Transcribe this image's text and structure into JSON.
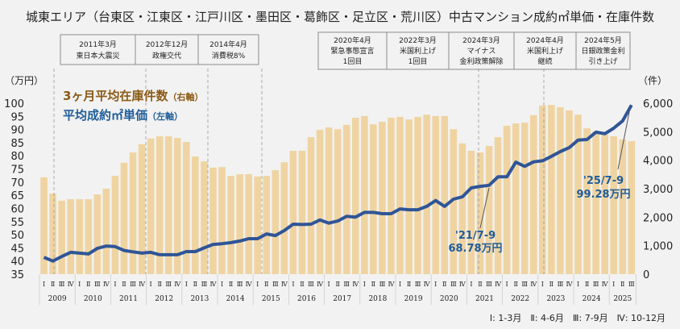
{
  "chart_data": {
    "type": "bar+line",
    "title": "城東エリア（台東区・江東区・江戸川区・墨田区・葛飾区・足立区・荒川区）中古マンション成約㎡単価・在庫件数",
    "left_axis": {
      "unit": "（万円）",
      "min": 35,
      "max": 100,
      "step": 5,
      "ticks": [
        "35",
        "40",
        "45",
        "50",
        "55",
        "60",
        "65",
        "70",
        "75",
        "80",
        "85",
        "90",
        "95",
        "100"
      ]
    },
    "right_axis": {
      "unit": "（件）",
      "min": 0,
      "max": 6000,
      "step": 1000,
      "ticks": [
        "0",
        "1,000",
        "2,000",
        "3,000",
        "4,000",
        "5,000",
        "6,000"
      ]
    },
    "years": [
      "2009",
      "2010",
      "2011",
      "2012",
      "2013",
      "2014",
      "2015",
      "2016",
      "2017",
      "2018",
      "2019",
      "2020",
      "2021",
      "2022",
      "2023",
      "2024",
      "2025"
    ],
    "quarter_labels": [
      "Ⅰ",
      "Ⅱ",
      "Ⅲ",
      "Ⅳ"
    ],
    "last_year_quarters": 3,
    "series": [
      {
        "name": "3ヶ月平均在庫件数",
        "axis_note": "（右軸）",
        "axis": "right",
        "kind": "bar",
        "color": "#efd4a2",
        "values": [
          3400,
          2830,
          2580,
          2630,
          2630,
          2630,
          2800,
          3000,
          3450,
          3910,
          4270,
          4560,
          4760,
          4840,
          4840,
          4780,
          4640,
          4130,
          3960,
          3740,
          3760,
          3450,
          3510,
          3510,
          3430,
          3450,
          3650,
          3930,
          4330,
          4330,
          4810,
          5070,
          5150,
          5090,
          5240,
          5490,
          5550,
          5260,
          5350,
          5490,
          5520,
          5430,
          5520,
          5600,
          5550,
          5550,
          5090,
          4590,
          4330,
          4270,
          4500,
          4810,
          5210,
          5290,
          5320,
          5580,
          5920,
          5940,
          5860,
          5750,
          5600,
          5120,
          5010,
          4900,
          4840,
          4730,
          4670
        ]
      },
      {
        "name": "平均成約㎡単価",
        "axis_note": "（左軸）",
        "axis": "left",
        "kind": "line",
        "color": "#2f5597",
        "values": [
          41.4,
          40.0,
          41.7,
          43.3,
          43.0,
          42.7,
          44.8,
          45.7,
          45.5,
          44.0,
          43.5,
          43.0,
          43.3,
          42.4,
          42.4,
          42.4,
          43.6,
          43.6,
          45.0,
          46.3,
          46.6,
          47.0,
          47.6,
          48.5,
          48.5,
          50.3,
          49.7,
          51.6,
          54.0,
          53.9,
          54.0,
          55.6,
          54.4,
          55.2,
          57.0,
          56.7,
          58.5,
          58.5,
          58.0,
          58.0,
          59.8,
          59.5,
          59.5,
          60.8,
          63.0,
          60.8,
          63.5,
          64.4,
          67.8,
          68.4,
          68.78,
          72.0,
          72.0,
          77.6,
          76.0,
          77.7,
          78.1,
          79.8,
          81.6,
          83.1,
          86.0,
          86.2,
          89.0,
          88.4,
          90.5,
          93.3,
          99.28
        ]
      }
    ],
    "annotations": [
      {
        "period": "'21/7-9",
        "value": "68.78万円"
      },
      {
        "period": "'25/7-9",
        "value": "99.28万円"
      }
    ],
    "events_left": [
      {
        "line1": "2011年3月",
        "line2": "東日本大震災"
      },
      {
        "line1": "2012年12月",
        "line2": "政権交代"
      },
      {
        "line1": "2014年4月",
        "line2": "消費税8%"
      }
    ],
    "events_right": [
      {
        "line1": "2020年4月",
        "line2": "緊急事態宣言",
        "line3": "1回目"
      },
      {
        "line1": "2022年3月",
        "line2": "米国利上げ",
        "line3": "1回目"
      },
      {
        "line1": "2024年3月",
        "line2": "マイナス",
        "line3": "金利政策解除"
      },
      {
        "line1": "2024年4月",
        "line2": "米国利上げ",
        "line3": "継続"
      },
      {
        "line1": "2024年5月",
        "line2": "日銀政策金利",
        "line3": "引き上げ"
      }
    ],
    "footnote": "Ⅰ: 1-3月　Ⅱ: 4-6月　Ⅲ: 7-9月　Ⅳ: 10-12月",
    "legend_position": "top-left",
    "grid": false
  }
}
